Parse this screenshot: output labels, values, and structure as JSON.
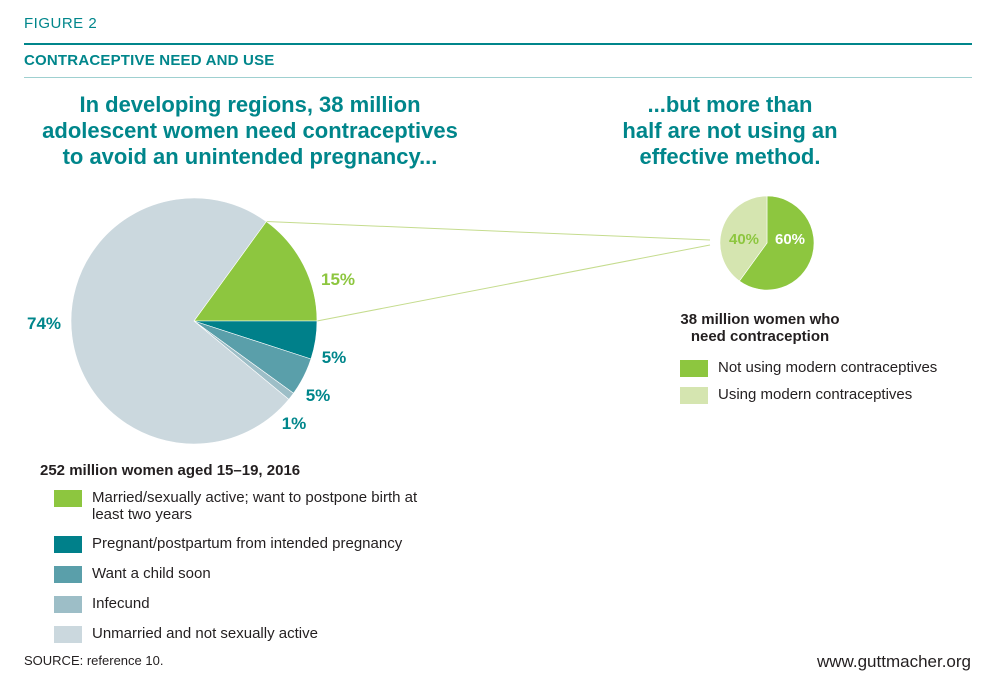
{
  "figure_label": "FIGURE 2",
  "figure_title": "CONTRACEPTIVE NEED AND USE",
  "headline_left": [
    "In developing regions, 38 million",
    "adolescent women need contraceptives",
    "to avoid an unintended pregnancy..."
  ],
  "headline_right": [
    "...but more than",
    "half are not using an",
    "effective method."
  ],
  "colors": {
    "teal": "#00868b",
    "green": "#8dc63f",
    "dark_teal": "#00808a",
    "mid_teal": "#5a9faa",
    "light_blue": "#9dbec7",
    "pale_blue": "#cbd8de",
    "pale_green": "#d5e5b0",
    "connector": "#c5dc8e"
  },
  "chart_data": [
    {
      "type": "pie",
      "title": "252 million women aged 15–19, 2016",
      "slices": [
        {
          "label": "Married/sexually active; want to postpone birth at least two years",
          "value": 15,
          "value_label": "15%",
          "color": "#8dc63f"
        },
        {
          "label": "Pregnant/postpartum from intended pregnancy",
          "value": 5,
          "value_label": "5%",
          "color": "#00808a"
        },
        {
          "label": "Want a child soon",
          "value": 5,
          "value_label": "5%",
          "color": "#5a9faa"
        },
        {
          "label": "Infecund",
          "value": 1,
          "value_label": "1%",
          "color": "#9dbec7"
        },
        {
          "label": "Unmarried and not sexually active",
          "value": 74,
          "value_label": "74%",
          "color": "#cbd8de"
        }
      ],
      "legend_placement": "bottom"
    },
    {
      "type": "pie",
      "title": "38 million women who need contraception",
      "slices": [
        {
          "label": "Not using modern contraceptives",
          "value": 60,
          "value_label": "60%",
          "color": "#8dc63f"
        },
        {
          "label": "Using modern contraceptives",
          "value": 40,
          "value_label": "40%",
          "color": "#d5e5b0"
        }
      ],
      "legend_placement": "bottom"
    }
  ],
  "right_caption": [
    "38 million women who",
    "need contraception"
  ],
  "source": "SOURCE: reference 10.",
  "url": "www.guttmacher.org"
}
